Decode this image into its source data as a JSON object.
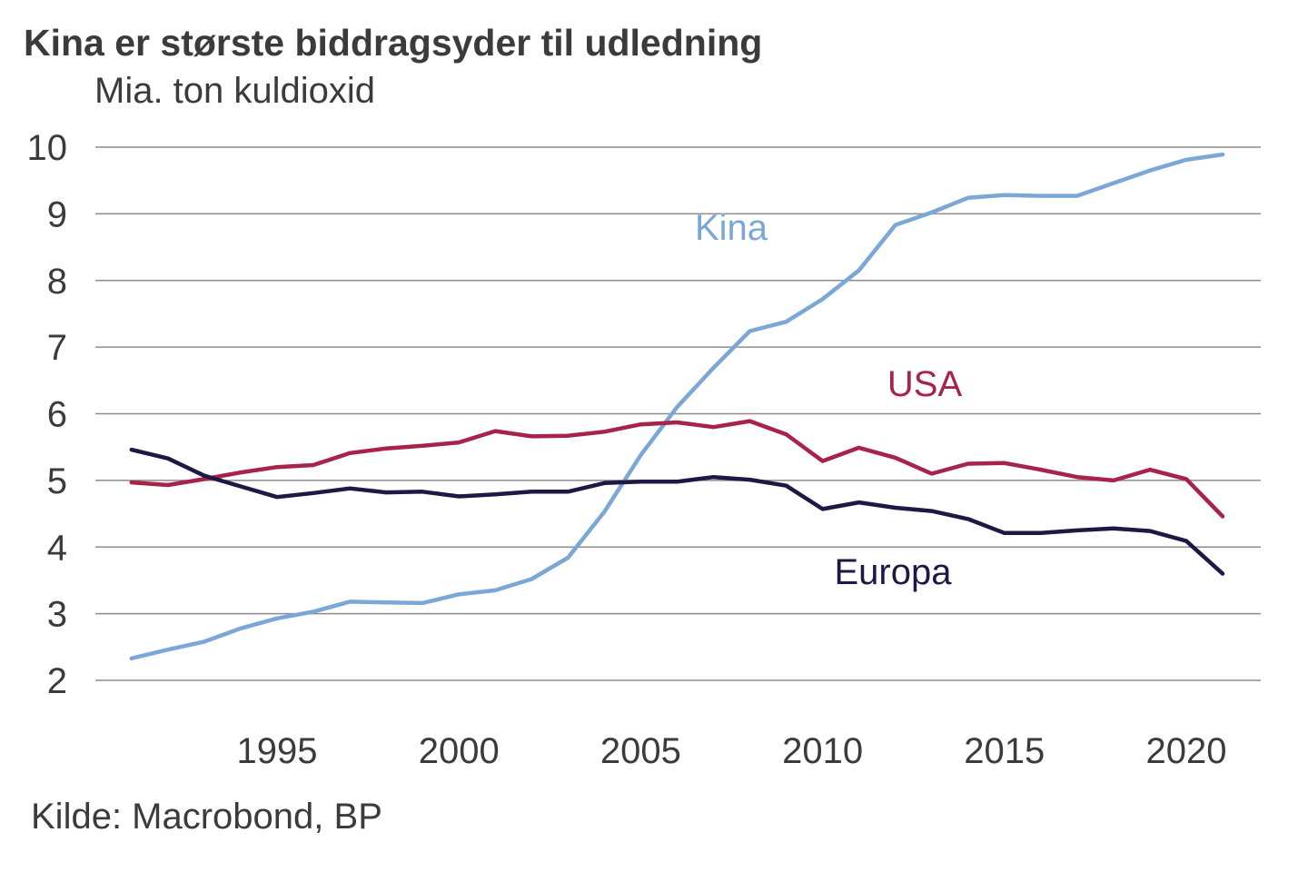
{
  "title": "Kina er største biddragsyder til udledning",
  "unit_label": "Mia. ton kuldioxid",
  "source": "Kilde: Macrobond, BP",
  "colors": {
    "Kina": "#7ba7d6",
    "USA": "#a8234a",
    "Europa": "#1c1a44",
    "grid": "#8c8c8c",
    "text": "#3b3b3b"
  },
  "chart_data": {
    "type": "line",
    "title": "Kina er største biddragsyder til udledning",
    "ylabel": "Mia. ton kuldioxid",
    "xlabel": "",
    "ylim": [
      2,
      10
    ],
    "xlim": [
      1990.5,
      2023
    ],
    "yticks": [
      "2",
      "3",
      "4",
      "5",
      "6",
      "7",
      "8",
      "9",
      "10"
    ],
    "xticks": [
      "1995",
      "2000",
      "2005",
      "2010",
      "2015",
      "2020"
    ],
    "grid": true,
    "x": [
      1991,
      1992,
      1993,
      1994,
      1995,
      1996,
      1997,
      1998,
      1999,
      2000,
      2001,
      2002,
      2003,
      2004,
      2005,
      2006,
      2007,
      2008,
      2009,
      2010,
      2011,
      2012,
      2013,
      2014,
      2015,
      2016,
      2017,
      2018,
      2019,
      2020,
      2021
    ],
    "series": [
      {
        "name": "Kina",
        "values": [
          2.33,
          2.46,
          2.58,
          2.78,
          2.93,
          3.03,
          3.18,
          3.17,
          3.16,
          3.29,
          3.35,
          3.52,
          3.84,
          4.53,
          5.38,
          6.1,
          6.69,
          7.24,
          7.38,
          7.72,
          8.15,
          8.83,
          9.02,
          9.24,
          9.28,
          9.27,
          9.27,
          9.46,
          9.65,
          9.81,
          9.89
        ]
      },
      {
        "name": "USA",
        "values": [
          4.97,
          4.93,
          5.02,
          5.12,
          5.2,
          5.23,
          5.41,
          5.48,
          5.52,
          5.57,
          5.74,
          5.66,
          5.67,
          5.73,
          5.84,
          5.87,
          5.8,
          5.89,
          5.69,
          5.29,
          5.49,
          5.34,
          5.1,
          5.25,
          5.26,
          5.16,
          5.05,
          5.0,
          5.16,
          5.02,
          4.46
        ]
      },
      {
        "name": "Europa",
        "values": [
          5.46,
          5.33,
          5.07,
          4.91,
          4.75,
          4.81,
          4.88,
          4.82,
          4.83,
          4.76,
          4.79,
          4.83,
          4.83,
          4.96,
          4.98,
          4.98,
          5.05,
          5.01,
          4.92,
          4.57,
          4.67,
          4.59,
          4.54,
          4.42,
          4.21,
          4.21,
          4.25,
          4.28,
          4.24,
          4.09,
          3.6
        ]
      }
    ],
    "annotations": [
      {
        "text": "Kina",
        "series": "Kina"
      },
      {
        "text": "USA",
        "series": "USA"
      },
      {
        "text": "Europa",
        "series": "Europa"
      }
    ]
  }
}
